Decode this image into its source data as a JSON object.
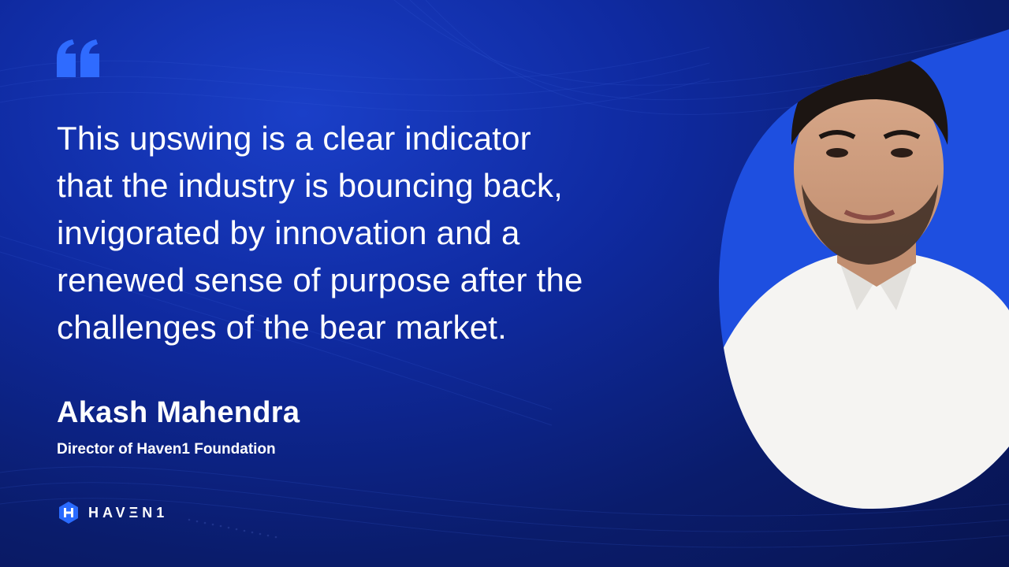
{
  "quote": {
    "lines": [
      "This upswing is a clear indicator",
      "that the industry is bouncing back,",
      "invigorated by innovation and a",
      "renewed sense of purpose after the",
      "challenges of the bear market."
    ]
  },
  "speaker": {
    "name": "Akash Mahendra",
    "title": "Director of Haven1 Foundation"
  },
  "brand": {
    "logo_text": "HAVΞN1",
    "accent": "#2a6bff"
  },
  "colors": {
    "background": "#0f2aa0",
    "quote_mark": "#2f6bff",
    "text": "#ffffff"
  }
}
